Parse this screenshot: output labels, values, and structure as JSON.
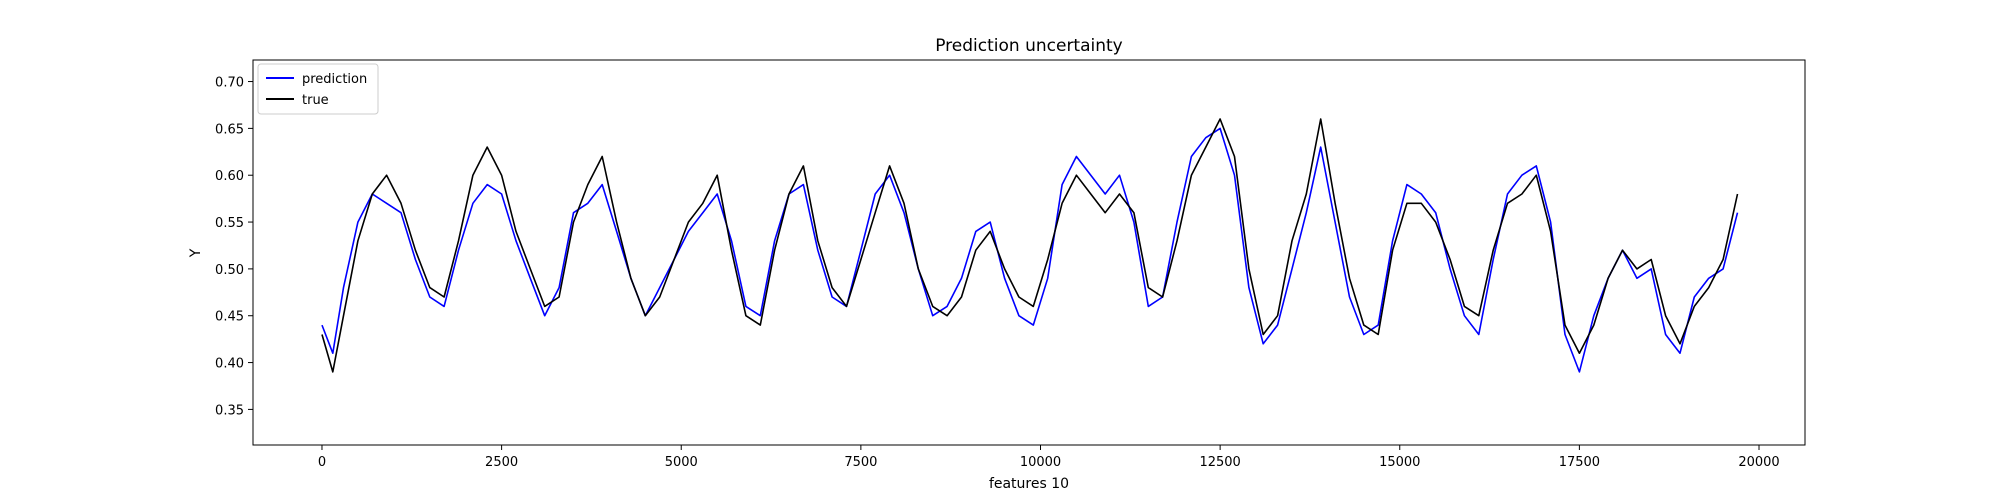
{
  "chart_data": {
    "type": "line",
    "title": "Prediction uncertainty",
    "xlabel": "features 10",
    "ylabel": "Y",
    "xlim": [
      -960,
      20640
    ],
    "ylim": [
      0.312,
      0.723
    ],
    "xticks": [
      0,
      2500,
      5000,
      7500,
      10000,
      12500,
      15000,
      17500,
      20000
    ],
    "xtick_labels": [
      "0",
      "2500",
      "5000",
      "7500",
      "10000",
      "12500",
      "15000",
      "17500",
      "20000"
    ],
    "yticks": [
      0.35,
      0.4,
      0.45,
      0.5,
      0.55,
      0.6,
      0.65,
      0.7
    ],
    "ytick_labels": [
      "0.35",
      "0.40",
      "0.45",
      "0.50",
      "0.55",
      "0.60",
      "0.65",
      "0.70"
    ],
    "grid": false,
    "legend": {
      "placement": "top-left",
      "entries": [
        "prediction",
        "true"
      ]
    },
    "colors": {
      "prediction": "#0000ff",
      "true": "#000000"
    },
    "series": [
      {
        "name": "prediction",
        "x": [
          0,
          150,
          300,
          500,
          700,
          900,
          1100,
          1300,
          1500,
          1700,
          1900,
          2100,
          2300,
          2500,
          2700,
          2900,
          3100,
          3300,
          3500,
          3700,
          3900,
          4100,
          4300,
          4500,
          4700,
          4900,
          5100,
          5300,
          5500,
          5700,
          5900,
          6100,
          6300,
          6500,
          6700,
          6900,
          7100,
          7300,
          7500,
          7700,
          7900,
          8100,
          8300,
          8500,
          8700,
          8900,
          9100,
          9300,
          9500,
          9700,
          9900,
          10100,
          10300,
          10500,
          10700,
          10900,
          11100,
          11300,
          11500,
          11700,
          11900,
          12100,
          12300,
          12500,
          12700,
          12900,
          13100,
          13300,
          13500,
          13700,
          13900,
          14100,
          14300,
          14500,
          14700,
          14900,
          15100,
          15300,
          15500,
          15700,
          15900,
          16100,
          16300,
          16500,
          16700,
          16900,
          17100,
          17300,
          17500,
          17700,
          17900,
          18100,
          18300,
          18500,
          18700,
          18900,
          19100,
          19300,
          19500,
          19700
        ],
        "y": [
          0.44,
          0.41,
          0.48,
          0.55,
          0.58,
          0.57,
          0.56,
          0.51,
          0.47,
          0.46,
          0.52,
          0.57,
          0.59,
          0.58,
          0.53,
          0.49,
          0.45,
          0.48,
          0.56,
          0.57,
          0.59,
          0.54,
          0.49,
          0.45,
          0.48,
          0.51,
          0.54,
          0.56,
          0.58,
          0.53,
          0.46,
          0.45,
          0.53,
          0.58,
          0.59,
          0.52,
          0.47,
          0.46,
          0.52,
          0.58,
          0.6,
          0.56,
          0.5,
          0.45,
          0.46,
          0.49,
          0.54,
          0.55,
          0.49,
          0.45,
          0.44,
          0.49,
          0.59,
          0.62,
          0.6,
          0.58,
          0.6,
          0.55,
          0.46,
          0.47,
          0.55,
          0.62,
          0.64,
          0.65,
          0.6,
          0.48,
          0.42,
          0.44,
          0.5,
          0.56,
          0.63,
          0.55,
          0.47,
          0.43,
          0.44,
          0.53,
          0.59,
          0.58,
          0.56,
          0.5,
          0.45,
          0.43,
          0.51,
          0.58,
          0.6,
          0.61,
          0.55,
          0.43,
          0.39,
          0.45,
          0.49,
          0.52,
          0.49,
          0.5,
          0.43,
          0.41,
          0.47,
          0.49,
          0.5,
          0.56
        ]
      },
      {
        "name": "true",
        "x": [
          0,
          150,
          300,
          500,
          700,
          900,
          1100,
          1300,
          1500,
          1700,
          1900,
          2100,
          2300,
          2500,
          2700,
          2900,
          3100,
          3300,
          3500,
          3700,
          3900,
          4100,
          4300,
          4500,
          4700,
          4900,
          5100,
          5300,
          5500,
          5700,
          5900,
          6100,
          6300,
          6500,
          6700,
          6900,
          7100,
          7300,
          7500,
          7700,
          7900,
          8100,
          8300,
          8500,
          8700,
          8900,
          9100,
          9300,
          9500,
          9700,
          9900,
          10100,
          10300,
          10500,
          10700,
          10900,
          11100,
          11300,
          11500,
          11700,
          11900,
          12100,
          12300,
          12500,
          12700,
          12900,
          13100,
          13300,
          13500,
          13700,
          13900,
          14100,
          14300,
          14500,
          14700,
          14900,
          15100,
          15300,
          15500,
          15700,
          15900,
          16100,
          16300,
          16500,
          16700,
          16900,
          17100,
          17300,
          17500,
          17700,
          17900,
          18100,
          18300,
          18500,
          18700,
          18900,
          19100,
          19300,
          19500,
          19700
        ],
        "y": [
          0.43,
          0.39,
          0.45,
          0.53,
          0.58,
          0.6,
          0.57,
          0.52,
          0.48,
          0.47,
          0.53,
          0.6,
          0.63,
          0.6,
          0.54,
          0.5,
          0.46,
          0.47,
          0.55,
          0.59,
          0.62,
          0.55,
          0.49,
          0.45,
          0.47,
          0.51,
          0.55,
          0.57,
          0.6,
          0.52,
          0.45,
          0.44,
          0.52,
          0.58,
          0.61,
          0.53,
          0.48,
          0.46,
          0.51,
          0.56,
          0.61,
          0.57,
          0.5,
          0.46,
          0.45,
          0.47,
          0.52,
          0.54,
          0.5,
          0.47,
          0.46,
          0.51,
          0.57,
          0.6,
          0.58,
          0.56,
          0.58,
          0.56,
          0.48,
          0.47,
          0.53,
          0.6,
          0.63,
          0.66,
          0.62,
          0.5,
          0.43,
          0.45,
          0.53,
          0.58,
          0.66,
          0.57,
          0.49,
          0.44,
          0.43,
          0.52,
          0.57,
          0.57,
          0.55,
          0.51,
          0.46,
          0.45,
          0.52,
          0.57,
          0.58,
          0.6,
          0.54,
          0.44,
          0.41,
          0.44,
          0.49,
          0.52,
          0.5,
          0.51,
          0.45,
          0.42,
          0.46,
          0.48,
          0.51,
          0.58
        ]
      }
    ]
  }
}
